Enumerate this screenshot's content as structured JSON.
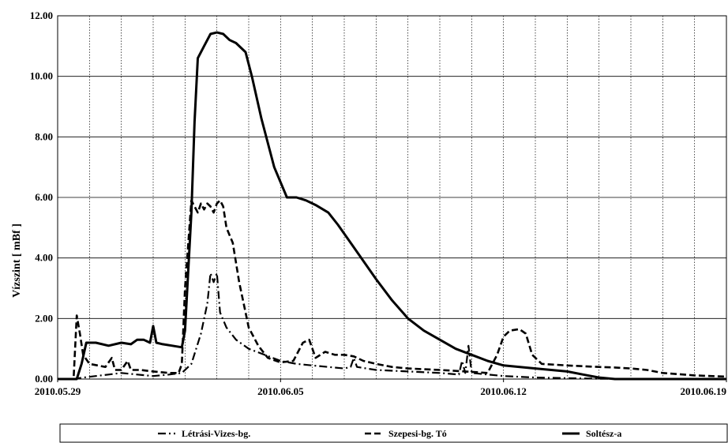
{
  "chart_data": {
    "type": "line",
    "title": "",
    "xlabel": "",
    "ylabel": "Vízszint [ mBf ]",
    "x_ticks": [
      "2010.05.29",
      "2010.06.05",
      "2010.06.12",
      "2010.06.19"
    ],
    "x_range_days": [
      0,
      21
    ],
    "x_start_date": "2010.05.29",
    "ylim": [
      0,
      12
    ],
    "y_ticks": [
      "0.00",
      "2.00",
      "4.00",
      "6.00",
      "8.00",
      "10.00",
      "12.00"
    ],
    "grid": {
      "horizontal": true,
      "vertical_dotted": true
    },
    "legend_position": "bottom",
    "series": [
      {
        "name": "Létrási-Vizes-bg.",
        "dash": "dashdot",
        "points": [
          [
            0,
            0
          ],
          [
            0.5,
            0
          ],
          [
            0.8,
            0.05
          ],
          [
            1.2,
            0.1
          ],
          [
            1.6,
            0.15
          ],
          [
            2.0,
            0.2
          ],
          [
            2.5,
            0.15
          ],
          [
            3.0,
            0.1
          ],
          [
            3.5,
            0.15
          ],
          [
            3.9,
            0.2
          ],
          [
            4.2,
            0.5
          ],
          [
            4.5,
            1.5
          ],
          [
            4.7,
            2.5
          ],
          [
            4.8,
            3.5
          ],
          [
            4.9,
            3.2
          ],
          [
            5.0,
            3.5
          ],
          [
            5.1,
            2.2
          ],
          [
            5.3,
            1.7
          ],
          [
            5.6,
            1.3
          ],
          [
            6.0,
            1.0
          ],
          [
            6.5,
            0.8
          ],
          [
            7.0,
            0.6
          ],
          [
            7.5,
            0.5
          ],
          [
            8.0,
            0.45
          ],
          [
            8.5,
            0.4
          ],
          [
            9.0,
            0.35
          ],
          [
            9.2,
            0.4
          ],
          [
            9.3,
            0.7
          ],
          [
            9.4,
            0.4
          ],
          [
            10.0,
            0.3
          ],
          [
            11.0,
            0.25
          ],
          [
            12.0,
            0.2
          ],
          [
            12.6,
            0.15
          ],
          [
            12.7,
            0.6
          ],
          [
            12.8,
            0.2
          ],
          [
            12.9,
            1.1
          ],
          [
            13.0,
            0.2
          ],
          [
            14.0,
            0.1
          ],
          [
            15.0,
            0.05
          ],
          [
            16.0,
            0.03
          ],
          [
            17.0,
            0.01
          ],
          [
            18.0,
            0
          ],
          [
            21,
            0
          ]
        ]
      },
      {
        "name": "Szepesi-bg. Tó",
        "dash": "dashed",
        "points": [
          [
            0,
            0
          ],
          [
            0.5,
            0
          ],
          [
            0.6,
            2.1
          ],
          [
            0.7,
            1.5
          ],
          [
            0.8,
            0.8
          ],
          [
            1.0,
            0.5
          ],
          [
            1.5,
            0.4
          ],
          [
            1.7,
            0.7
          ],
          [
            1.8,
            0.3
          ],
          [
            2.0,
            0.3
          ],
          [
            2.2,
            0.6
          ],
          [
            2.3,
            0.3
          ],
          [
            2.6,
            0.3
          ],
          [
            3.0,
            0.25
          ],
          [
            3.5,
            0.2
          ],
          [
            3.8,
            0.2
          ],
          [
            3.9,
            0.5
          ],
          [
            4.0,
            3.0
          ],
          [
            4.2,
            5.9
          ],
          [
            4.3,
            5.7
          ],
          [
            4.4,
            5.5
          ],
          [
            4.5,
            5.8
          ],
          [
            4.6,
            5.6
          ],
          [
            4.7,
            5.8
          ],
          [
            4.8,
            5.7
          ],
          [
            4.9,
            5.5
          ],
          [
            5.0,
            5.8
          ],
          [
            5.1,
            5.9
          ],
          [
            5.2,
            5.7
          ],
          [
            5.3,
            5.0
          ],
          [
            5.5,
            4.5
          ],
          [
            5.7,
            3.2
          ],
          [
            6.0,
            1.7
          ],
          [
            6.3,
            1.1
          ],
          [
            6.6,
            0.7
          ],
          [
            7.0,
            0.55
          ],
          [
            7.4,
            0.6
          ],
          [
            7.7,
            1.2
          ],
          [
            7.9,
            1.3
          ],
          [
            8.1,
            0.7
          ],
          [
            8.4,
            0.9
          ],
          [
            8.7,
            0.8
          ],
          [
            9.0,
            0.8
          ],
          [
            9.3,
            0.75
          ],
          [
            9.6,
            0.6
          ],
          [
            10.0,
            0.5
          ],
          [
            10.5,
            0.4
          ],
          [
            11.0,
            0.35
          ],
          [
            12.0,
            0.3
          ],
          [
            12.8,
            0.25
          ],
          [
            13.5,
            0.2
          ],
          [
            13.8,
            0.8
          ],
          [
            14.0,
            1.4
          ],
          [
            14.2,
            1.6
          ],
          [
            14.5,
            1.65
          ],
          [
            14.7,
            1.5
          ],
          [
            14.9,
            0.8
          ],
          [
            15.2,
            0.5
          ],
          [
            16.0,
            0.45
          ],
          [
            17.0,
            0.4
          ],
          [
            17.5,
            0.38
          ],
          [
            18.0,
            0.35
          ],
          [
            18.5,
            0.3
          ],
          [
            19.0,
            0.2
          ],
          [
            20.0,
            0.12
          ],
          [
            20.5,
            0.1
          ],
          [
            21.0,
            0.08
          ]
        ]
      },
      {
        "name": "Soltész-a",
        "dash": "solid",
        "points": [
          [
            0,
            0
          ],
          [
            0.5,
            0
          ],
          [
            0.6,
            0
          ],
          [
            0.75,
            0.5
          ],
          [
            0.9,
            1.2
          ],
          [
            1.2,
            1.2
          ],
          [
            1.6,
            1.1
          ],
          [
            2.0,
            1.2
          ],
          [
            2.3,
            1.15
          ],
          [
            2.5,
            1.3
          ],
          [
            2.7,
            1.3
          ],
          [
            2.9,
            1.2
          ],
          [
            3.0,
            1.75
          ],
          [
            3.1,
            1.2
          ],
          [
            3.3,
            1.15
          ],
          [
            3.6,
            1.1
          ],
          [
            3.9,
            1.05
          ],
          [
            4.0,
            1.6
          ],
          [
            4.2,
            5.5
          ],
          [
            4.3,
            8.5
          ],
          [
            4.4,
            10.6
          ],
          [
            4.6,
            11.0
          ],
          [
            4.8,
            11.4
          ],
          [
            5.0,
            11.45
          ],
          [
            5.2,
            11.4
          ],
          [
            5.4,
            11.2
          ],
          [
            5.6,
            11.1
          ],
          [
            5.9,
            10.8
          ],
          [
            6.1,
            10.0
          ],
          [
            6.4,
            8.6
          ],
          [
            6.8,
            7.0
          ],
          [
            7.2,
            6.0
          ],
          [
            7.5,
            6.0
          ],
          [
            7.8,
            5.9
          ],
          [
            8.1,
            5.75
          ],
          [
            8.5,
            5.5
          ],
          [
            8.8,
            5.1
          ],
          [
            9.2,
            4.5
          ],
          [
            9.6,
            3.9
          ],
          [
            10.0,
            3.3
          ],
          [
            10.5,
            2.6
          ],
          [
            11.0,
            2.0
          ],
          [
            11.5,
            1.6
          ],
          [
            12.0,
            1.3
          ],
          [
            12.5,
            1.0
          ],
          [
            13.0,
            0.8
          ],
          [
            13.5,
            0.6
          ],
          [
            14.0,
            0.45
          ],
          [
            15.0,
            0.35
          ],
          [
            16.0,
            0.25
          ],
          [
            16.5,
            0.15
          ],
          [
            17.0,
            0.05
          ],
          [
            17.5,
            0
          ],
          [
            21,
            0
          ]
        ]
      }
    ]
  }
}
